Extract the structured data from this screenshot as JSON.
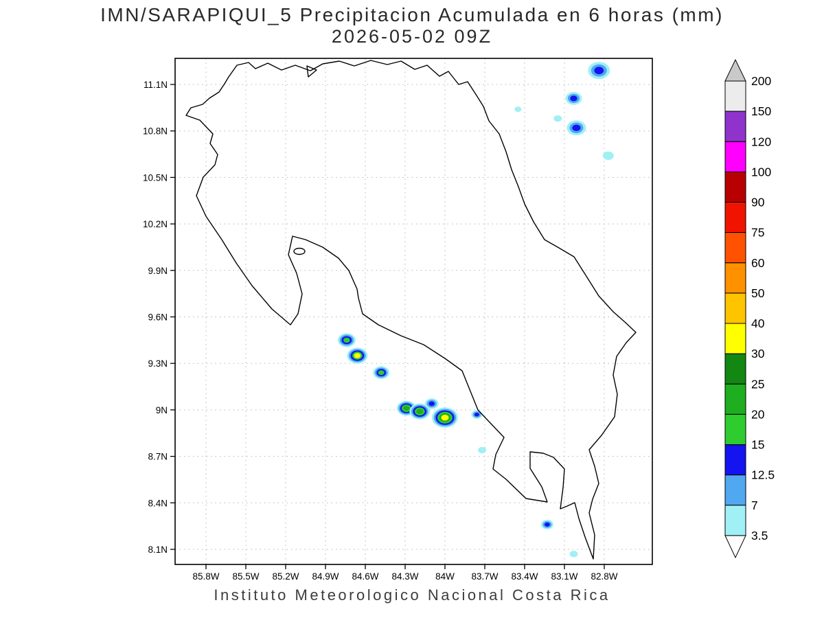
{
  "title": {
    "line1": "IMN/SARAPIQUI_5 Precipitacion Acumulada en 6 horas (mm)",
    "line2": "2026-05-02 09Z"
  },
  "footer": "Instituto Meteorologico Nacional Costa Rica",
  "map": {
    "lat_ticks": [
      "11.1N",
      "10.8N",
      "10.5N",
      "10.2N",
      "9.9N",
      "9.6N",
      "9.3N",
      "9N",
      "8.7N",
      "8.4N",
      "8.1N"
    ],
    "lon_ticks": [
      "85.8W",
      "85.5W",
      "85.2W",
      "84.9W",
      "84.6W",
      "84.3W",
      "84W",
      "83.7W",
      "83.4W",
      "83.1W",
      "82.8W"
    ]
  },
  "colorbar": {
    "boundary_labels_top_to_bottom": [
      "200",
      "150",
      "120",
      "100",
      "90",
      "75",
      "60",
      "50",
      "40",
      "30",
      "25",
      "20",
      "15",
      "12.5",
      "7",
      "3.5"
    ],
    "segment_colors_top_to_bottom": [
      "#ececec",
      "#8f33cc",
      "#ff00ff",
      "#b80000",
      "#f01400",
      "#ff5200",
      "#ff9000",
      "#ffc400",
      "#ffff00",
      "#128712",
      "#1fae1f",
      "#2fcc2f",
      "#1414f0",
      "#4fa8f0",
      "#a0f0f5"
    ],
    "top_cap_color": "#c9c9c9",
    "bottom_cap_color": "#ffffff"
  },
  "palette": {
    "3.5": "#a0f0f5",
    "7": "#4fa8f0",
    "12.5": "#1414f0",
    "15": "#2fcc2f",
    "20": "#1fae1f",
    "25": "#128712",
    "30": "#ffff00"
  },
  "chart_data": {
    "type": "heatmap",
    "title": "IMN/SARAPIQUI_5 Precipitacion Acumulada en 6 horas (mm)",
    "valid_time": "2026-05-02 09Z",
    "units": "mm",
    "source_caption": "Instituto Meteorologico Nacional Costa Rica",
    "scale_levels_mm": [
      3.5,
      7,
      12.5,
      15,
      20,
      25,
      30,
      40,
      50,
      60,
      75,
      90,
      100,
      120,
      150,
      200
    ],
    "lon_range_w": [
      85.8,
      82.8
    ],
    "lat_range_n": [
      8.1,
      11.1
    ],
    "grid": "dotted",
    "legend_position": "right",
    "cells": [
      {
        "lat": 9.45,
        "lon_w": 84.74,
        "levels": [
          "3.5",
          "7",
          "12.5",
          "15"
        ],
        "radius_px": 13
      },
      {
        "lat": 9.35,
        "lon_w": 84.66,
        "levels": [
          "3.5",
          "7",
          "12.5",
          "15",
          "30"
        ],
        "radius_px": 15
      },
      {
        "lat": 9.24,
        "lon_w": 84.48,
        "levels": [
          "3.5",
          "7",
          "12.5",
          "15"
        ],
        "radius_px": 12
      },
      {
        "lat": 9.01,
        "lon_w": 84.29,
        "levels": [
          "3.5",
          "7",
          "12.5",
          "15",
          "20"
        ],
        "radius_px": 14
      },
      {
        "lat": 8.99,
        "lon_w": 84.19,
        "levels": [
          "3.5",
          "7",
          "12.5",
          "15",
          "20"
        ],
        "radius_px": 15
      },
      {
        "lat": 9.04,
        "lon_w": 84.1,
        "levels": [
          "3.5",
          "7",
          "12.5"
        ],
        "radius_px": 10
      },
      {
        "lat": 8.95,
        "lon_w": 84.0,
        "levels": [
          "3.5",
          "7",
          "12.5",
          "15",
          "20",
          "30"
        ],
        "radius_px": 19
      },
      {
        "lat": 8.97,
        "lon_w": 83.76,
        "levels": [
          "3.5",
          "7",
          "12.5"
        ],
        "radius_px": 8
      },
      {
        "lat": 8.74,
        "lon_w": 83.72,
        "levels": [
          "3.5"
        ],
        "radius_px": 6
      },
      {
        "lat": 11.19,
        "lon_w": 82.84,
        "levels": [
          "3.5",
          "7",
          "12.5"
        ],
        "radius_px": 16
      },
      {
        "lat": 11.01,
        "lon_w": 83.03,
        "levels": [
          "3.5",
          "7",
          "12.5"
        ],
        "radius_px": 12
      },
      {
        "lat": 10.94,
        "lon_w": 83.45,
        "levels": [
          "3.5"
        ],
        "radius_px": 5
      },
      {
        "lat": 10.88,
        "lon_w": 83.15,
        "levels": [
          "3.5"
        ],
        "radius_px": 6
      },
      {
        "lat": 10.82,
        "lon_w": 83.01,
        "levels": [
          "3.5",
          "7",
          "12.5"
        ],
        "radius_px": 14
      },
      {
        "lat": 10.64,
        "lon_w": 82.77,
        "levels": [
          "3.5"
        ],
        "radius_px": 8
      },
      {
        "lat": 8.26,
        "lon_w": 83.23,
        "levels": [
          "3.5",
          "7",
          "12.5"
        ],
        "radius_px": 9
      },
      {
        "lat": 8.07,
        "lon_w": 83.03,
        "levels": [
          "3.5"
        ],
        "radius_px": 6
      }
    ]
  }
}
